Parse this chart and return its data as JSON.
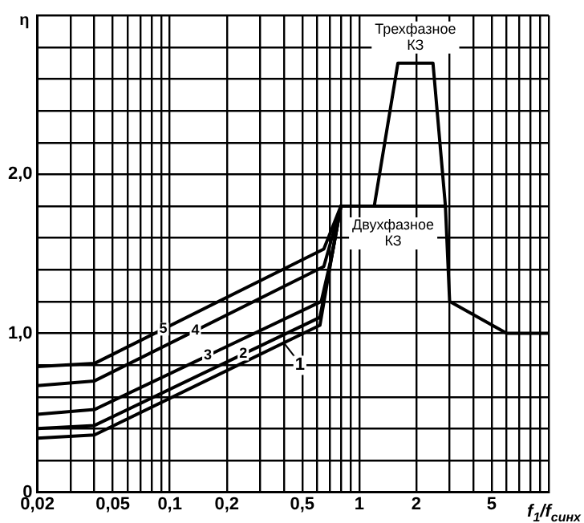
{
  "chart_data": {
    "type": "line",
    "xlabel": "f$_{1}$/f$_{синх}$",
    "ylabel": "η",
    "log": "x",
    "grid": true,
    "legend": false,
    "line_style": "solid",
    "xlim": [
      0.02,
      10
    ],
    "ylim": [
      0,
      3
    ],
    "xticks": [
      {
        "value": 0.02,
        "label": "0,02"
      },
      {
        "value": 0.03,
        "label": null
      },
      {
        "value": 0.04,
        "label": null
      },
      {
        "value": 0.05,
        "label": "0,05"
      },
      {
        "value": 0.06,
        "label": null
      },
      {
        "value": 0.07,
        "label": null
      },
      {
        "value": 0.08,
        "label": null
      },
      {
        "value": 0.09,
        "label": null
      },
      {
        "value": 0.1,
        "label": "0,1"
      },
      {
        "value": 0.2,
        "label": "0,2"
      },
      {
        "value": 0.3,
        "label": null
      },
      {
        "value": 0.4,
        "label": null
      },
      {
        "value": 0.5,
        "label": "0,5"
      },
      {
        "value": 0.6,
        "label": null
      },
      {
        "value": 0.7,
        "label": null
      },
      {
        "value": 0.8,
        "label": null
      },
      {
        "value": 0.9,
        "label": null
      },
      1,
      2,
      {
        "value": 3,
        "label": null
      },
      {
        "value": 4,
        "label": null
      },
      5,
      {
        "value": 6,
        "label": null
      },
      {
        "value": 7,
        "label": null
      },
      {
        "value": 8,
        "label": null
      },
      {
        "value": 9,
        "label": null
      },
      {
        "value": 10,
        "label": null
      }
    ],
    "yticks": [
      0,
      {
        "value": 0.2,
        "label": null
      },
      {
        "value": 0.4,
        "label": null
      },
      {
        "value": 0.6,
        "label": null
      },
      {
        "value": 0.8,
        "label": null
      },
      {
        "value": 1,
        "label": "1,0"
      },
      {
        "value": 1.2,
        "label": null
      },
      {
        "value": 1.4,
        "label": null
      },
      {
        "value": 1.6,
        "label": null
      },
      {
        "value": 1.8,
        "label": null
      },
      {
        "value": 2,
        "label": "2,0"
      },
      {
        "value": 2.2,
        "label": null
      },
      {
        "value": 2.4,
        "label": null
      },
      {
        "value": 2.6,
        "label": null
      },
      {
        "value": 2.8,
        "label": null
      },
      {
        "value": 3,
        "label": null
      }
    ],
    "series": [
      {
        "name": "1",
        "color": "#000000",
        "x": [
          0.02,
          0.04,
          0.62,
          0.72,
          0.8
        ],
        "values": [
          0.34,
          0.36,
          1.05,
          1.5,
          1.8
        ]
      },
      {
        "name": "2",
        "color": "#000000",
        "x": [
          0.02,
          0.04,
          0.62,
          0.72,
          0.8
        ],
        "values": [
          0.4,
          0.42,
          1.1,
          1.5,
          1.8
        ]
      },
      {
        "name": "3",
        "color": "#000000",
        "x": [
          0.02,
          0.04,
          0.63,
          0.72,
          0.8
        ],
        "values": [
          0.49,
          0.52,
          1.2,
          1.5,
          1.8
        ]
      },
      {
        "name": "4",
        "color": "#000000",
        "x": [
          0.02,
          0.04,
          0.65,
          0.8
        ],
        "values": [
          0.67,
          0.7,
          1.42,
          1.8
        ]
      },
      {
        "name": "5",
        "color": "#000000",
        "x": [
          0.02,
          0.04,
          0.65,
          0.8
        ],
        "values": [
          0.79,
          0.81,
          1.53,
          1.8
        ]
      },
      {
        "name": "Двухфазное КЗ",
        "color": "#000000",
        "x": [
          0.8,
          2.85,
          3,
          6,
          10
        ],
        "values": [
          1.8,
          1.8,
          1.2,
          1,
          1
        ]
      },
      {
        "name": "Трехфазное КЗ",
        "color": "#000000",
        "x": [
          1.2,
          1.6,
          2.45,
          2.85
        ],
        "values": [
          1.8,
          2.7,
          2.7,
          1.8
        ]
      }
    ]
  }
}
